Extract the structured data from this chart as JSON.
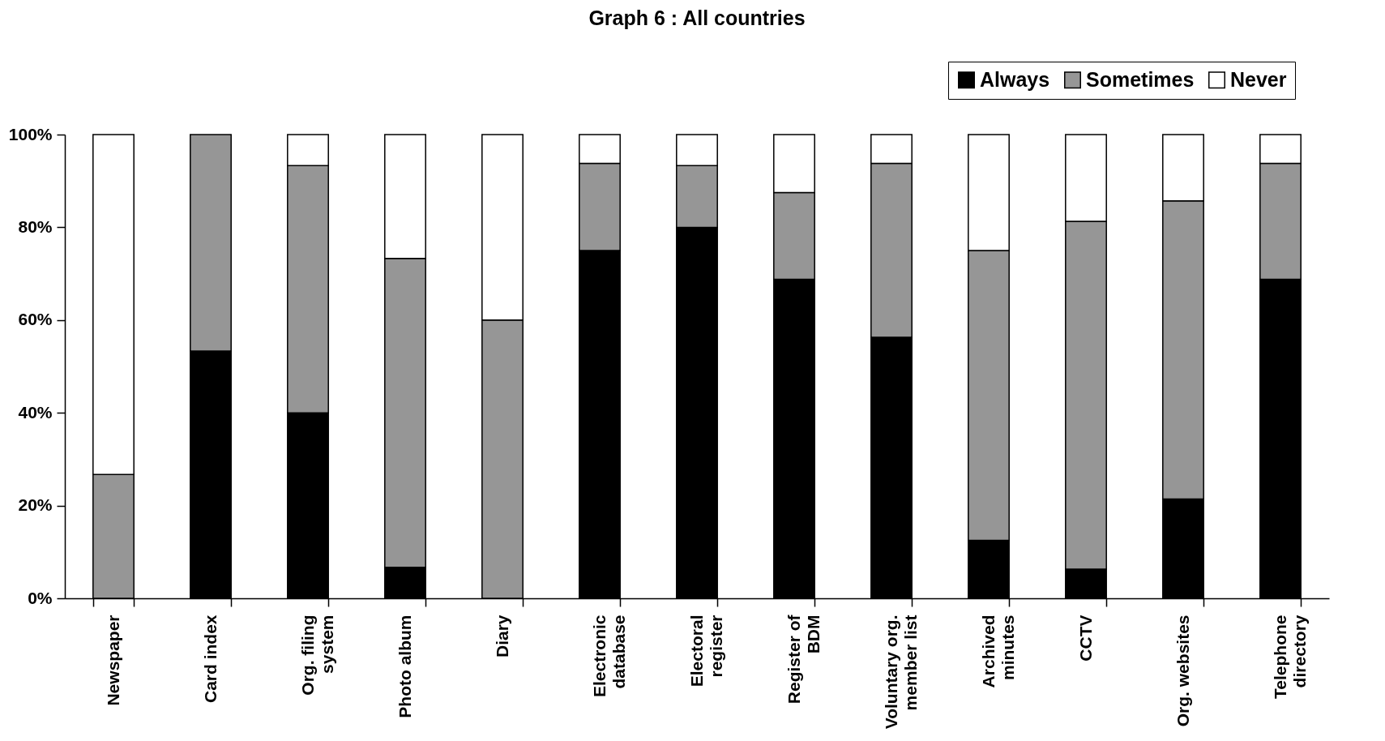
{
  "chart_data": {
    "type": "bar",
    "title": "Graph 6 : All countries",
    "stacked": true,
    "legend": "top right",
    "grid": false,
    "categories": [
      "Newspaper",
      "Card index",
      "Org. filing system",
      "Photo album",
      "Diary",
      "Electronic database",
      "Electoral register",
      "Register of BDM",
      "Voluntary org. member list",
      "Archived minutes",
      "CCTV",
      "Org. websites",
      "Telephone directory"
    ],
    "series": [
      {
        "name": "Always",
        "color": "#000000",
        "values": [
          0,
          53.3,
          40,
          6.7,
          0,
          75,
          80,
          68.8,
          56.3,
          12.5,
          6.3,
          21.4,
          68.8
        ]
      },
      {
        "name": "Sometimes",
        "color": "#969696",
        "values": [
          26.7,
          46.7,
          53.3,
          66.6,
          60,
          18.8,
          13.3,
          18.7,
          37.5,
          62.5,
          75,
          64.3,
          25
        ]
      },
      {
        "name": "Never",
        "color": "#ffffff",
        "values": [
          73.3,
          0,
          6.7,
          26.7,
          40,
          6.2,
          6.7,
          12.5,
          6.2,
          25,
          18.7,
          14.3,
          6.2
        ]
      }
    ],
    "ylim": [
      0,
      100
    ],
    "yticks": [
      {
        "value": 0,
        "label": "0%"
      },
      {
        "value": 20,
        "label": "20%"
      },
      {
        "value": 40,
        "label": "40%"
      },
      {
        "value": 60,
        "label": "60%"
      },
      {
        "value": 80,
        "label": "80%"
      },
      {
        "value": 100,
        "label": "100%"
      }
    ]
  }
}
